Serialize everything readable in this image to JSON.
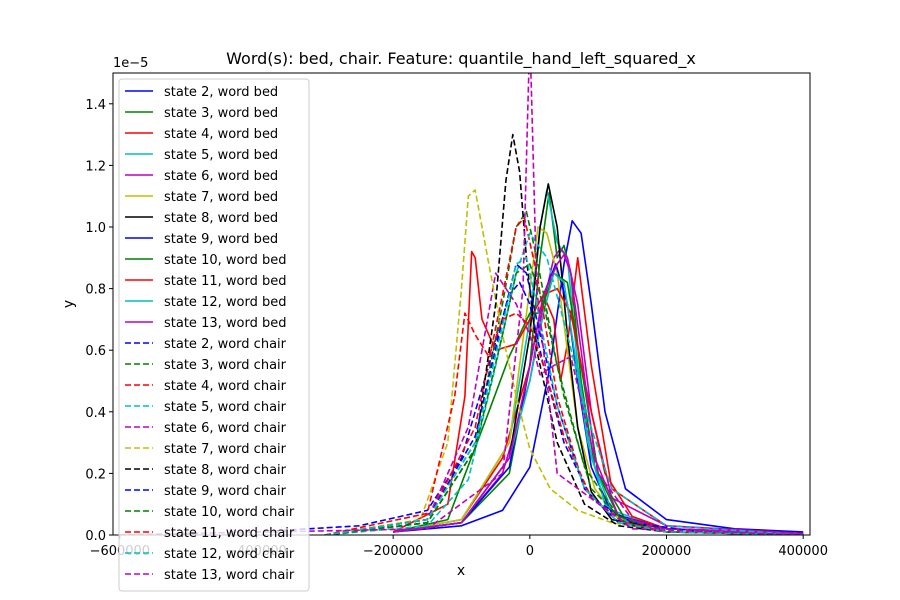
{
  "chart_data": {
    "type": "line",
    "title": "Word(s): bed, chair. Feature: quantile_hand_left_squared_x",
    "xlabel": "x",
    "ylabel": "y",
    "y_offset_label": "1e−5",
    "xlim": [
      -610000,
      410000
    ],
    "ylim": [
      0,
      1.5
    ],
    "x_ticks": [
      -600000,
      -400000,
      -200000,
      0,
      200000,
      400000
    ],
    "x_tick_labels": [
      "−600000",
      "−400000",
      "−200000",
      "0",
      "200000",
      "400000"
    ],
    "y_ticks": [
      0.0,
      0.2,
      0.4,
      0.6,
      0.8,
      1.0,
      1.2,
      1.4
    ],
    "y_tick_labels": [
      "0.0",
      "0.2",
      "0.4",
      "0.6",
      "0.8",
      "1.0",
      "1.2",
      "1.4"
    ],
    "grid": false,
    "legend_position": "top-left",
    "series": [
      {
        "name": "state 2, word bed",
        "color": "#0000ff",
        "dashed": false,
        "x": [
          -200000,
          -100000,
          -40000,
          0,
          30000,
          50000,
          62000,
          75000,
          90000,
          110000,
          140000,
          200000,
          300000,
          400000
        ],
        "y": [
          0.01,
          0.03,
          0.08,
          0.22,
          0.55,
          0.88,
          1.02,
          0.98,
          0.75,
          0.4,
          0.15,
          0.05,
          0.02,
          0.01
        ]
      },
      {
        "name": "state 3, word bed",
        "color": "#008000",
        "dashed": false,
        "x": [
          -200000,
          -100000,
          -30000,
          0,
          15000,
          28000,
          40000,
          50000,
          60000,
          75000,
          95000,
          130000,
          200000,
          400000
        ],
        "y": [
          0.01,
          0.04,
          0.2,
          0.55,
          0.9,
          1.11,
          0.9,
          0.94,
          0.85,
          0.5,
          0.22,
          0.06,
          0.02,
          0.005
        ]
      },
      {
        "name": "state 4, word bed",
        "color": "#ff0000",
        "dashed": false,
        "x": [
          -200000,
          -100000,
          -40000,
          0,
          20000,
          35000,
          45000,
          55000,
          70000,
          90000,
          120000,
          200000,
          400000
        ],
        "y": [
          0.01,
          0.05,
          0.25,
          0.55,
          0.78,
          0.7,
          0.5,
          0.62,
          0.9,
          0.55,
          0.15,
          0.03,
          0.005
        ]
      },
      {
        "name": "state 5, word bed",
        "color": "#00bfbf",
        "dashed": false,
        "x": [
          -200000,
          -100000,
          -30000,
          0,
          15000,
          25000,
          40000,
          55000,
          70000,
          90000,
          120000,
          200000,
          400000
        ],
        "y": [
          0.01,
          0.05,
          0.3,
          0.7,
          1.0,
          1.12,
          0.95,
          0.9,
          0.55,
          0.25,
          0.08,
          0.02,
          0.005
        ]
      },
      {
        "name": "state 6, word bed",
        "color": "#bf00bf",
        "dashed": false,
        "x": [
          -200000,
          -100000,
          -40000,
          0,
          20000,
          35000,
          45000,
          55000,
          70000,
          90000,
          120000,
          200000,
          400000
        ],
        "y": [
          0.01,
          0.04,
          0.2,
          0.5,
          0.75,
          0.9,
          0.93,
          0.9,
          0.75,
          0.4,
          0.12,
          0.03,
          0.005
        ]
      },
      {
        "name": "state 7, word bed",
        "color": "#bfbf00",
        "dashed": false,
        "x": [
          -200000,
          -100000,
          -30000,
          0,
          12000,
          25000,
          40000,
          55000,
          70000,
          95000,
          130000,
          200000,
          400000
        ],
        "y": [
          0.01,
          0.05,
          0.3,
          0.8,
          1.0,
          0.98,
          0.85,
          0.6,
          0.35,
          0.15,
          0.05,
          0.02,
          0.005
        ]
      },
      {
        "name": "state 8, word bed",
        "color": "#000000",
        "dashed": false,
        "x": [
          -200000,
          -100000,
          -30000,
          0,
          15000,
          27000,
          40000,
          55000,
          70000,
          90000,
          120000,
          200000,
          400000
        ],
        "y": [
          0.01,
          0.04,
          0.25,
          0.65,
          1.0,
          1.14,
          1.0,
          0.65,
          0.35,
          0.14,
          0.05,
          0.02,
          0.005
        ]
      },
      {
        "name": "state 9, word bed",
        "color": "#0000ff",
        "dashed": false,
        "x": [
          -200000,
          -100000,
          -30000,
          0,
          20000,
          38000,
          55000,
          70000,
          90000,
          120000,
          200000,
          400000
        ],
        "y": [
          0.01,
          0.04,
          0.22,
          0.55,
          0.78,
          0.88,
          0.75,
          0.5,
          0.22,
          0.07,
          0.02,
          0.005
        ]
      },
      {
        "name": "state 10, word bed",
        "color": "#008000",
        "dashed": false,
        "x": [
          -200000,
          -120000,
          -60000,
          -30000,
          0,
          15000,
          35000,
          55000,
          75000,
          100000,
          140000,
          200000,
          400000
        ],
        "y": [
          0.01,
          0.05,
          0.4,
          0.58,
          0.72,
          0.72,
          0.85,
          0.82,
          0.55,
          0.2,
          0.05,
          0.02,
          0.005
        ]
      },
      {
        "name": "state 11, word bed",
        "color": "#ff0000",
        "dashed": false,
        "x": [
          -200000,
          -120000,
          -95000,
          -85000,
          -80000,
          -70000,
          -50000,
          -20000,
          0,
          20000,
          40000,
          60000,
          80000,
          110000,
          150000,
          200000,
          400000
        ],
        "y": [
          0.01,
          0.1,
          0.45,
          0.92,
          0.9,
          0.7,
          0.6,
          0.62,
          0.7,
          0.78,
          0.8,
          0.72,
          0.5,
          0.2,
          0.06,
          0.02,
          0.005
        ]
      },
      {
        "name": "state 12, word bed",
        "color": "#00bfbf",
        "dashed": false,
        "x": [
          -200000,
          -100000,
          -30000,
          0,
          20000,
          35000,
          50000,
          65000,
          85000,
          110000,
          150000,
          200000,
          400000
        ],
        "y": [
          0.01,
          0.04,
          0.25,
          0.5,
          0.72,
          0.85,
          0.82,
          0.6,
          0.3,
          0.1,
          0.03,
          0.01,
          0.005
        ]
      },
      {
        "name": "state 13, word bed",
        "color": "#bf00bf",
        "dashed": false,
        "x": [
          -200000,
          -100000,
          -30000,
          0,
          20000,
          40000,
          50000,
          60000,
          75000,
          95000,
          130000,
          200000,
          400000
        ],
        "y": [
          0.01,
          0.04,
          0.25,
          0.55,
          0.78,
          0.88,
          0.91,
          0.85,
          0.6,
          0.25,
          0.06,
          0.02,
          0.005
        ]
      },
      {
        "name": "state 2, word chair",
        "color": "#0000ff",
        "dashed": true,
        "x": [
          -600000,
          -400000,
          -250000,
          -150000,
          -100000,
          -60000,
          -30000,
          -15000,
          0,
          20000,
          50000,
          90000,
          150000,
          250000,
          400000
        ],
        "y": [
          0.0,
          0.01,
          0.03,
          0.08,
          0.25,
          0.55,
          0.78,
          0.82,
          0.75,
          0.55,
          0.3,
          0.12,
          0.04,
          0.01,
          0.0
        ]
      },
      {
        "name": "state 3, word chair",
        "color": "#008000",
        "dashed": true,
        "x": [
          -300000,
          -150000,
          -80000,
          -40000,
          -20000,
          -5000,
          10000,
          40000,
          80000,
          130000,
          200000,
          400000
        ],
        "y": [
          0.0,
          0.05,
          0.3,
          0.75,
          1.0,
          1.05,
          0.9,
          0.55,
          0.22,
          0.06,
          0.01,
          0.0
        ]
      },
      {
        "name": "state 4, word chair",
        "color": "#ff0000",
        "dashed": true,
        "x": [
          -300000,
          -150000,
          -80000,
          -40000,
          -20000,
          -8000,
          10000,
          40000,
          80000,
          130000,
          200000,
          400000
        ],
        "y": [
          0.0,
          0.05,
          0.35,
          0.78,
          1.0,
          1.03,
          0.85,
          0.45,
          0.15,
          0.04,
          0.01,
          0.0
        ]
      },
      {
        "name": "state 5, word chair",
        "color": "#00bfbf",
        "dashed": true,
        "x": [
          -300000,
          -150000,
          -90000,
          -50000,
          -20000,
          0,
          25000,
          55000,
          85000,
          120000,
          200000,
          400000
        ],
        "y": [
          0.0,
          0.03,
          0.18,
          0.55,
          0.85,
          0.98,
          0.9,
          0.65,
          0.38,
          0.15,
          0.03,
          0.0
        ]
      },
      {
        "name": "state 6, word chair",
        "color": "#bf00bf",
        "dashed": true,
        "x": [
          -300000,
          -150000,
          -90000,
          -50000,
          -20000,
          0,
          15000,
          35000,
          60000,
          100000,
          150000,
          200000,
          400000
        ],
        "y": [
          0.0,
          0.05,
          0.35,
          0.85,
          0.75,
          0.65,
          0.52,
          0.55,
          0.58,
          0.2,
          0.05,
          0.01,
          0.0
        ]
      },
      {
        "name": "state 7, word chair",
        "color": "#bfbf00",
        "dashed": true,
        "x": [
          -300000,
          -160000,
          -120000,
          -100000,
          -90000,
          -80000,
          -60000,
          -40000,
          -20000,
          0,
          30000,
          70000,
          120000,
          200000,
          400000
        ],
        "y": [
          0.0,
          0.05,
          0.3,
          0.8,
          1.1,
          1.12,
          0.88,
          0.65,
          0.45,
          0.28,
          0.15,
          0.08,
          0.04,
          0.01,
          0.0
        ]
      },
      {
        "name": "state 8, word chair",
        "color": "#000000",
        "dashed": true,
        "x": [
          -300000,
          -150000,
          -80000,
          -50000,
          -35000,
          -25000,
          -15000,
          -5000,
          10000,
          40000,
          80000,
          130000,
          200000,
          400000
        ],
        "y": [
          0.0,
          0.04,
          0.28,
          0.75,
          1.15,
          1.3,
          1.18,
          0.9,
          0.6,
          0.3,
          0.1,
          0.03,
          0.01,
          0.0
        ]
      },
      {
        "name": "state 9, word chair",
        "color": "#0000ff",
        "dashed": true,
        "x": [
          -300000,
          -150000,
          -80000,
          -40000,
          -20000,
          -5000,
          10000,
          40000,
          80000,
          130000,
          200000,
          400000
        ],
        "y": [
          0.0,
          0.05,
          0.32,
          0.7,
          0.88,
          0.85,
          0.7,
          0.42,
          0.15,
          0.04,
          0.01,
          0.0
        ]
      },
      {
        "name": "state 10, word chair",
        "color": "#008000",
        "dashed": true,
        "x": [
          -300000,
          -150000,
          -80000,
          -40000,
          -20000,
          0,
          20000,
          50000,
          90000,
          140000,
          200000,
          400000
        ],
        "y": [
          0.0,
          0.04,
          0.28,
          0.65,
          0.85,
          0.88,
          0.75,
          0.45,
          0.15,
          0.04,
          0.01,
          0.0
        ]
      },
      {
        "name": "state 11, word chair",
        "color": "#ff0000",
        "dashed": true,
        "x": [
          -300000,
          -150000,
          -110000,
          -95000,
          -80000,
          -60000,
          -40000,
          -20000,
          0,
          20000,
          50000,
          90000,
          140000,
          200000,
          400000
        ],
        "y": [
          0.0,
          0.07,
          0.45,
          0.72,
          0.65,
          0.58,
          0.7,
          0.72,
          0.68,
          0.55,
          0.32,
          0.12,
          0.04,
          0.01,
          0.0
        ]
      },
      {
        "name": "state 12, word chair",
        "color": "#00bfbf",
        "dashed": true,
        "x": [
          -300000,
          -150000,
          -80000,
          -40000,
          -20000,
          -5000,
          10000,
          40000,
          80000,
          130000,
          200000,
          400000
        ],
        "y": [
          0.0,
          0.05,
          0.3,
          0.68,
          0.88,
          0.9,
          0.75,
          0.42,
          0.15,
          0.04,
          0.01,
          0.0
        ]
      },
      {
        "name": "state 13, word chair",
        "color": "#bf00bf",
        "dashed": true,
        "x": [
          -600000,
          -150000,
          -40000,
          -10000,
          -4000,
          -1500,
          0,
          1500,
          4000,
          10000,
          40000,
          150000,
          400000
        ],
        "y": [
          0.0,
          0.02,
          0.2,
          0.8,
          1.3,
          1.5,
          1.6,
          1.5,
          1.3,
          0.8,
          0.2,
          0.02,
          0.0
        ]
      }
    ]
  }
}
